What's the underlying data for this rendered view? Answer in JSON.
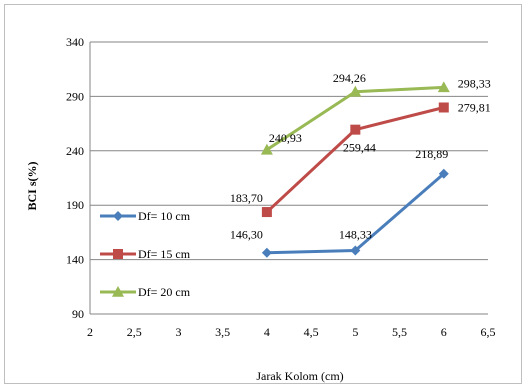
{
  "chart_data": {
    "type": "line",
    "title": "",
    "xlabel": "Jarak Kolom (cm)",
    "ylabel": "BCI s(%)",
    "xlim": [
      2,
      6.5
    ],
    "ylim": [
      90,
      340
    ],
    "x_ticks": [
      "2",
      "2,5",
      "3",
      "3,5",
      "4",
      "4,5",
      "5",
      "5,5",
      "6",
      "6,5"
    ],
    "x_tick_values": [
      2,
      2.5,
      3,
      3.5,
      4,
      4.5,
      5,
      5.5,
      6,
      6.5
    ],
    "y_ticks": [
      "90",
      "140",
      "190",
      "240",
      "290",
      "340"
    ],
    "y_tick_values": [
      90,
      140,
      190,
      240,
      290,
      340
    ],
    "grid": "horizontal",
    "legend_position": "left",
    "series": [
      {
        "name": "Df= 10 cm",
        "color": "#4a7ebb",
        "marker": "diamond",
        "x": [
          4,
          5,
          6
        ],
        "values": [
          146.3,
          148.33,
          218.89
        ],
        "labels": [
          "146,30",
          "148,33",
          "218,89"
        ]
      },
      {
        "name": "Df= 15 cm",
        "color": "#be4b48",
        "marker": "square",
        "x": [
          4,
          5,
          6
        ],
        "values": [
          183.7,
          259.44,
          279.81
        ],
        "labels": [
          "183,70",
          "259,44",
          "279,81"
        ]
      },
      {
        "name": "Df= 20 cm",
        "color": "#98b954",
        "marker": "triangle",
        "x": [
          4,
          5,
          6
        ],
        "values": [
          240.93,
          294.26,
          298.33
        ],
        "labels": [
          "240,93",
          "294,26",
          "298,33"
        ]
      }
    ]
  }
}
